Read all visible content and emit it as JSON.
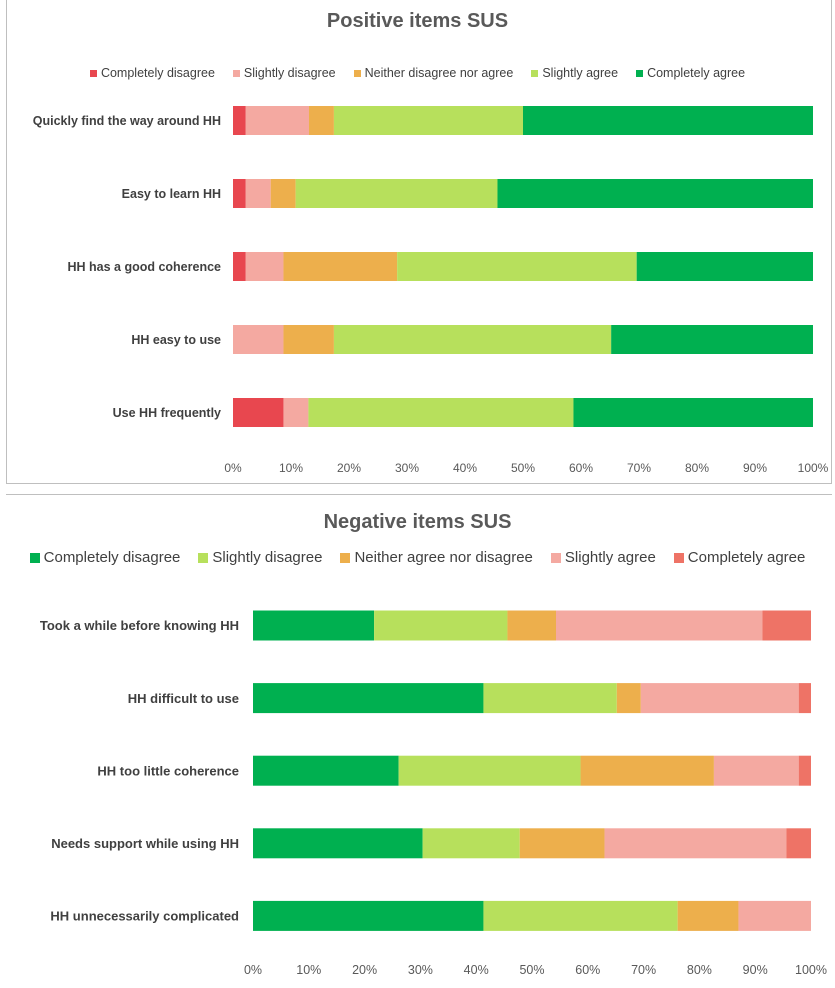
{
  "chart_data": [
    {
      "type": "bar",
      "orientation": "horizontal",
      "stacked": true,
      "title": "Positive items SUS",
      "categories": [
        "Quickly find the way around HH",
        "Easy to learn HH",
        "HH has a good coherence",
        "HH easy to use",
        "Use HH frequently"
      ],
      "series": [
        {
          "name": "Completely disagree",
          "color": "#e8474f",
          "values": [
            2.2,
            2.2,
            2.2,
            0,
            8.7
          ]
        },
        {
          "name": "Slightly disagree",
          "color": "#f4a9a1",
          "values": [
            10.9,
            4.3,
            6.5,
            8.7,
            4.3
          ]
        },
        {
          "name": "Neither disagree nor agree",
          "color": "#edaf4c",
          "values": [
            4.3,
            4.3,
            19.6,
            8.7,
            0
          ]
        },
        {
          "name": "Slightly agree",
          "color": "#b7e05c",
          "values": [
            32.6,
            34.8,
            41.3,
            47.8,
            45.7
          ]
        },
        {
          "name": "Completely agree",
          "color": "#00b050",
          "values": [
            50.0,
            54.4,
            30.4,
            34.8,
            41.3
          ]
        }
      ],
      "xlim": [
        0,
        100
      ],
      "ticks": [
        "0%",
        "10%",
        "20%",
        "30%",
        "40%",
        "50%",
        "60%",
        "70%",
        "80%",
        "90%",
        "100%"
      ],
      "legend_position": "top",
      "grid": false
    },
    {
      "type": "bar",
      "orientation": "horizontal",
      "stacked": true,
      "title": "Negative items SUS",
      "categories": [
        "Took a while before knowing HH",
        "HH difficult to use",
        "HH too little coherence",
        "Needs support while using HH",
        "HH unnecessarily complicated"
      ],
      "series": [
        {
          "name": "Completely disagree",
          "color": "#00b050",
          "values": [
            21.7,
            41.3,
            26.1,
            30.4,
            41.3
          ]
        },
        {
          "name": "Slightly disagree",
          "color": "#b7e05c",
          "values": [
            23.9,
            23.9,
            32.6,
            17.4,
            34.8
          ]
        },
        {
          "name": "Neither agree nor disagree",
          "color": "#edaf4c",
          "values": [
            8.7,
            4.3,
            23.9,
            15.2,
            10.9
          ]
        },
        {
          "name": "Slightly agree",
          "color": "#f4a9a1",
          "values": [
            37.0,
            28.3,
            15.2,
            32.6,
            13.0
          ]
        },
        {
          "name": "Completely agree",
          "color": "#ee7366",
          "values": [
            8.7,
            2.2,
            2.2,
            4.4,
            0
          ]
        }
      ],
      "xlim": [
        0,
        100
      ],
      "ticks": [
        "0%",
        "10%",
        "20%",
        "30%",
        "40%",
        "50%",
        "60%",
        "70%",
        "80%",
        "90%",
        "100%"
      ],
      "legend_position": "top",
      "grid": false
    }
  ]
}
